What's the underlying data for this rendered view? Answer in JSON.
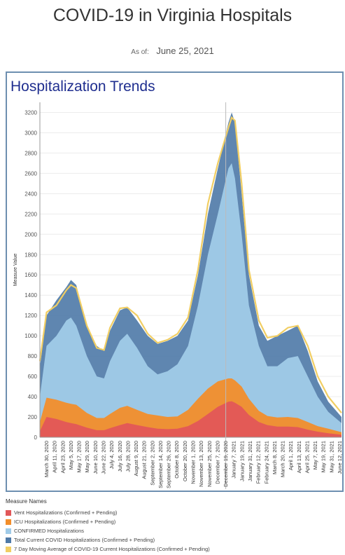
{
  "header": {
    "title": "COVID-19 in Virginia Hospitals",
    "as_of_label": "As of:",
    "as_of_value": "June 25, 2021"
  },
  "chart_data": {
    "type": "area",
    "title": "Hospitalization Trends",
    "ylabel": "Measure Value",
    "xlabel": "",
    "ylim": [
      0,
      3300
    ],
    "yticks": [
      0,
      200,
      400,
      600,
      800,
      1000,
      1200,
      1400,
      1600,
      1800,
      2000,
      2200,
      2400,
      2600,
      2800,
      3000,
      3200
    ],
    "x_range": [
      "2020-03-26",
      "2021-06-25"
    ],
    "x_tick_labels": [
      "March 30, 2020",
      "April 11, 2020",
      "April 23, 2020",
      "May 5, 2020",
      "May 17, 2020",
      "May 29, 2020",
      "June 10, 2020",
      "June 22, 2020",
      "July 4, 2020",
      "July 16, 2020",
      "July 28, 2020",
      "August 9, 2020",
      "August 21, 2020",
      "September 2, 2020",
      "September 14, 2020",
      "September 26, 2020",
      "October 8, 2020",
      "October 20, 2020",
      "November 1, 2020",
      "November 13, 2020",
      "November 25, 2020",
      "December 7, 2020",
      "December 19, 2020",
      "January 7, 2021",
      "January 19, 2021",
      "January 31, 2021",
      "February 12, 2021",
      "February 24, 2021",
      "March 8, 2021",
      "March 20, 2021",
      "April 1, 2021",
      "April 13, 2021",
      "April 25, 2021",
      "May 7, 2021",
      "May 19, 2021",
      "May 31, 2021",
      "June 12, 2021"
    ],
    "year_divider_date": "2021-01-01",
    "grid": true,
    "legend_title": "Measure Names",
    "legend_position": "bottom",
    "x": [
      "2020-03-26",
      "2020-04-05",
      "2020-04-20",
      "2020-05-05",
      "2020-05-12",
      "2020-05-20",
      "2020-06-05",
      "2020-06-20",
      "2020-07-01",
      "2020-07-10",
      "2020-07-25",
      "2020-08-05",
      "2020-08-20",
      "2020-09-05",
      "2020-09-20",
      "2020-10-05",
      "2020-10-20",
      "2020-11-05",
      "2020-11-20",
      "2020-12-05",
      "2020-12-20",
      "2021-01-05",
      "2021-01-10",
      "2021-01-15",
      "2021-01-25",
      "2021-02-05",
      "2021-02-20",
      "2021-03-05",
      "2021-03-20",
      "2021-04-05",
      "2021-04-20",
      "2021-05-05",
      "2021-05-20",
      "2021-06-05",
      "2021-06-25"
    ],
    "series": [
      {
        "name": "Vent Hospitalizations (Confirmed + Pending)",
        "color": "#e15759",
        "values": [
          60,
          200,
          180,
          150,
          140,
          130,
          95,
          70,
          70,
          90,
          120,
          140,
          120,
          100,
          85,
          80,
          85,
          110,
          160,
          230,
          300,
          350,
          355,
          340,
          300,
          220,
          150,
          120,
          105,
          105,
          100,
          75,
          55,
          40,
          25
        ]
      },
      {
        "name": "ICU Hospitalizations (Confirmed + Pending)",
        "color": "#f28e2b",
        "values": [
          150,
          390,
          370,
          340,
          330,
          320,
          240,
          190,
          190,
          230,
          290,
          310,
          270,
          230,
          215,
          200,
          205,
          270,
          380,
          480,
          550,
          580,
          580,
          560,
          500,
          380,
          260,
          210,
          195,
          200,
          190,
          150,
          110,
          85,
          50
        ]
      },
      {
        "name": "CONFIRMED Hospitalizations",
        "color": "#a0cbe8",
        "values": [
          400,
          900,
          1000,
          1150,
          1180,
          1100,
          800,
          600,
          580,
          750,
          950,
          1020,
          880,
          700,
          620,
          650,
          720,
          900,
          1300,
          1800,
          2200,
          2650,
          2700,
          2550,
          2000,
          1300,
          900,
          700,
          700,
          780,
          800,
          600,
          400,
          250,
          140
        ]
      },
      {
        "name": "Total Current COVID Hospitalizations (Confirmed + Pending)",
        "color": "#4e79a7",
        "values": [
          700,
          1200,
          1350,
          1480,
          1550,
          1500,
          1100,
          900,
          850,
          1050,
          1250,
          1280,
          1150,
          1000,
          920,
          950,
          1000,
          1150,
          1600,
          2200,
          2650,
          3100,
          3200,
          3100,
          2400,
          1600,
          1100,
          950,
          1000,
          1050,
          1100,
          850,
          550,
          350,
          200
        ]
      },
      {
        "name": "7 Day Moving Average of COVID-19 Current Hospitalizations (Confirmed + Pending)",
        "color": "#f1ce63",
        "values": [
          750,
          1230,
          1300,
          1450,
          1500,
          1470,
          1100,
          880,
          860,
          1080,
          1270,
          1280,
          1200,
          1020,
          930,
          960,
          1020,
          1180,
          1650,
          2300,
          2700,
          3050,
          3150,
          3120,
          2500,
          1650,
          1150,
          980,
          1000,
          1080,
          1100,
          900,
          600,
          400,
          240
        ]
      }
    ]
  }
}
